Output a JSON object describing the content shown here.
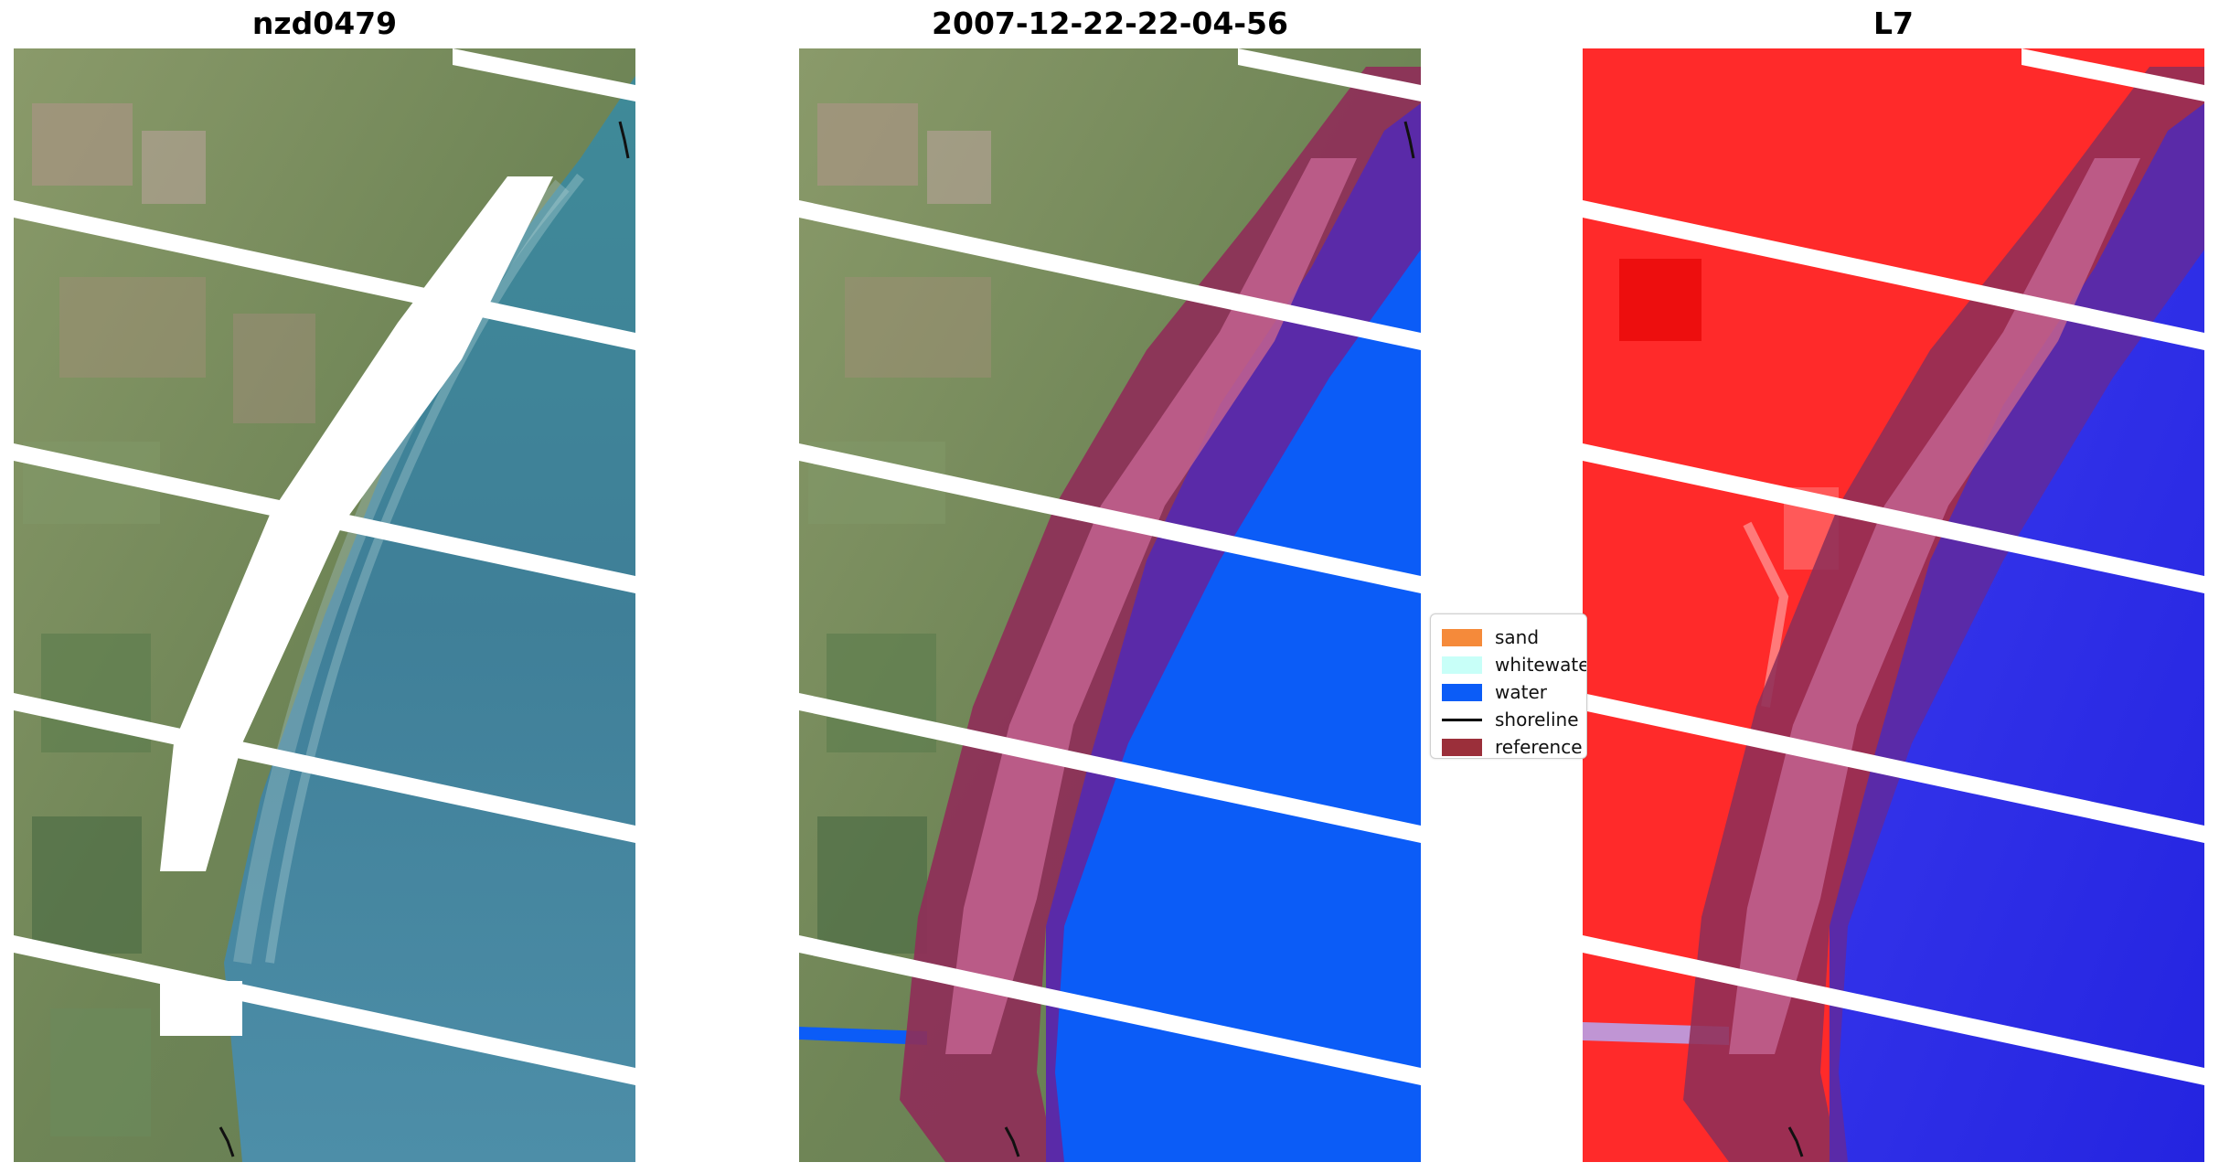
{
  "panels": [
    {
      "title": "nzd0479"
    },
    {
      "title": "2007-12-22-22-04-56"
    },
    {
      "title": "L7"
    }
  ],
  "legend": {
    "items": [
      {
        "label": "sand",
        "color": "#f58a3a",
        "kind": "patch"
      },
      {
        "label": "whitewater",
        "color": "#c8fff8",
        "kind": "patch"
      },
      {
        "label": "water",
        "color": "#0b5cf7",
        "kind": "patch"
      },
      {
        "label": "shoreline",
        "color": "#000000",
        "kind": "line"
      },
      {
        "label": "reference",
        "color": "#9b2f3a",
        "kind": "patch"
      }
    ]
  },
  "colors": {
    "water_class": "#0b5cf7",
    "reference_band": "#8e2f58",
    "reference_inner": "#c2628f",
    "reference_over_water": "#5a2aa8",
    "scanline_gap": "#ffffff",
    "land_rgb": "#7d8a62",
    "sea_rgb": "#4e8ea2",
    "land_false": "#ff2424",
    "sea_false": "#2323e6"
  }
}
